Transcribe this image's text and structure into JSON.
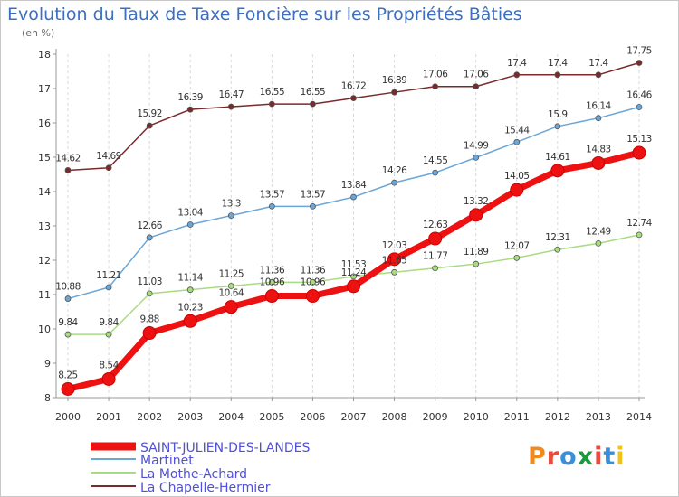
{
  "title": "Evolution du Taux de Taxe Foncière sur les Propriétés Bâties",
  "unit": "(en %)",
  "logo_text": "Proxiti",
  "chart_data": {
    "type": "line",
    "title": "Evolution du Taux de Taxe Foncière sur les Propriétés Bâties",
    "ylabel": "(en %)",
    "xlabel": "",
    "x": [
      "2000",
      "2001",
      "2002",
      "2003",
      "2004",
      "2005",
      "2006",
      "2007",
      "2008",
      "2009",
      "2010",
      "2011",
      "2012",
      "2013",
      "2014"
    ],
    "ylim": [
      8,
      18
    ],
    "yticks": [
      8,
      9,
      10,
      11,
      12,
      13,
      14,
      15,
      16,
      17,
      18
    ],
    "grid": "vertical dashed",
    "legend": "bottom-left",
    "series": [
      {
        "name": "SAINT-JULIEN-DES-LANDES",
        "color": "#ee1111",
        "legend_text_color": "#5050d8",
        "values": [
          8.25,
          8.54,
          9.88,
          10.23,
          10.64,
          10.96,
          10.96,
          11.24,
          12.03,
          12.63,
          13.32,
          14.05,
          14.61,
          14.83,
          15.13
        ],
        "labels": [
          "8.25",
          "8.54",
          "9.88",
          "10.23",
          "10.64",
          "10.96",
          "10.96",
          "11.24",
          "12.03",
          "12.63",
          "13.32",
          "14.05",
          "14.61",
          "14.83",
          "15.13"
        ]
      },
      {
        "name": "Martinet",
        "color": "#6ba6d8",
        "values": [
          10.88,
          11.21,
          12.66,
          13.04,
          13.3,
          13.57,
          13.57,
          13.84,
          14.26,
          14.55,
          14.99,
          15.44,
          15.9,
          16.14,
          16.46
        ],
        "labels": [
          "10.88",
          "11.21",
          "12.66",
          "13.04",
          "13.3",
          "13.57",
          "13.57",
          "13.84",
          "14.26",
          "14.55",
          "14.99",
          "15.44",
          "15.9",
          "16.14",
          "16.46"
        ]
      },
      {
        "name": "La Mothe-Achard",
        "color": "#a8dc80",
        "values": [
          9.84,
          9.84,
          11.03,
          11.14,
          11.25,
          11.36,
          11.36,
          11.53,
          11.65,
          11.77,
          11.89,
          12.07,
          12.31,
          12.49,
          12.74
        ],
        "labels": [
          "9.84",
          "9.84",
          "11.03",
          "11.14",
          "11.25",
          "11.36",
          "11.36",
          "11.53",
          "11.65",
          "11.77",
          "11.89",
          "12.07",
          "12.31",
          "12.49",
          "12.74"
        ]
      },
      {
        "name": "La Chapelle-Hermier",
        "color": "#7a2a2a",
        "values": [
          14.62,
          14.69,
          15.92,
          16.39,
          16.47,
          16.55,
          16.55,
          16.72,
          16.89,
          17.06,
          17.06,
          17.4,
          17.4,
          17.4,
          17.75
        ],
        "labels": [
          "14.62",
          "14.69",
          "15.92",
          "16.39",
          "16.47",
          "16.55",
          "16.55",
          "16.72",
          "16.89",
          "17.06",
          "17.06",
          "17.4",
          "17.4",
          "17.4",
          "17.75"
        ]
      }
    ]
  }
}
